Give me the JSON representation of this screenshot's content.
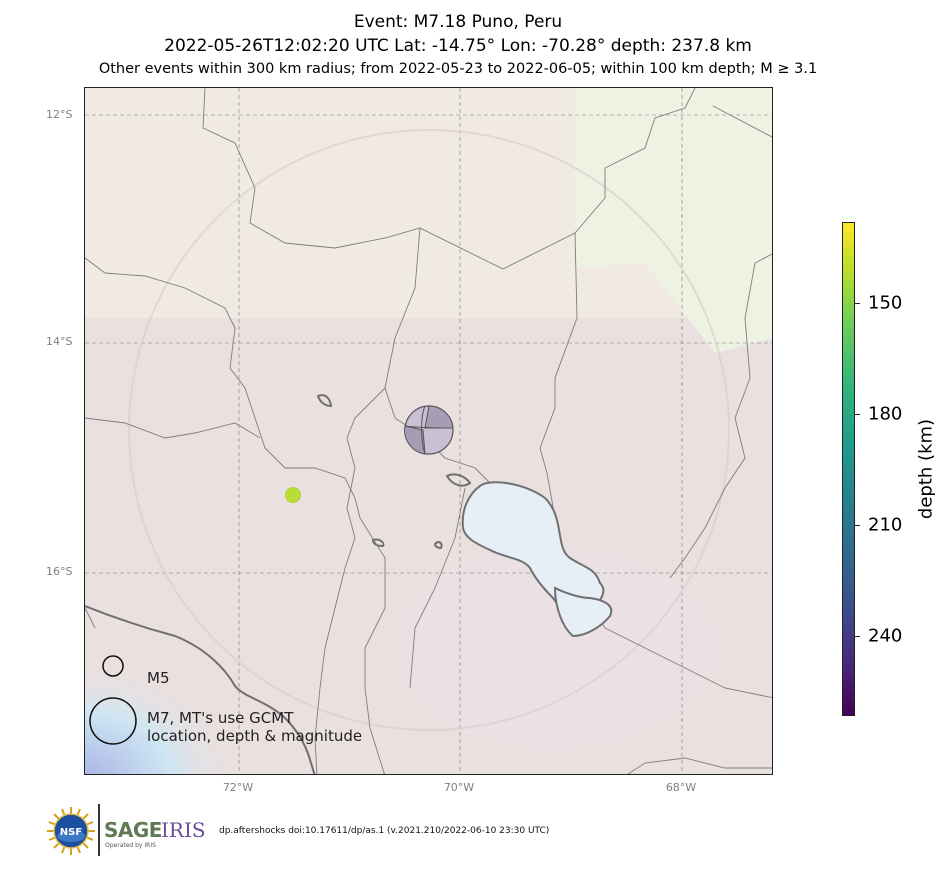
{
  "title": {
    "line1": "Event: M7.18 Puno, Peru",
    "line2": "2022-05-26T12:02:20 UTC Lat: -14.75° Lon: -70.28° depth: 237.8 km",
    "line3": "Other events within 300 km radius; from 2022-05-23 to 2022-06-05; within 100 km depth; M ≥ 3.1"
  },
  "map": {
    "lat_labels": [
      "12°S",
      "14°S",
      "16°S"
    ],
    "lon_labels": [
      "72°W",
      "70°W",
      "68°W"
    ],
    "main_event": {
      "lat": -14.75,
      "lon": -70.28,
      "magnitude": 7.18,
      "depth_km": 237.8,
      "symbol": "focal-mechanism-beachball"
    },
    "other_events": [
      {
        "lat": -15.3,
        "lon": -71.5,
        "color": "#b5de2b"
      }
    ],
    "legend": {
      "small_label": "M5",
      "large_label_line1": "M7, MT's use GCMT",
      "large_label_line2": "location, depth & magnitude"
    }
  },
  "colorbar": {
    "title": "depth (km)",
    "ticks": [
      "150",
      "180",
      "210",
      "240"
    ],
    "colormap": "viridis"
  },
  "footer": {
    "sage": "SAGE",
    "iris": "IRIS",
    "nsf": "NSF",
    "operated_by": "Operated by IRIS",
    "doi": "dp.aftershocks doi:10.17611/dp/as.1 (v.2021.210/2022-06-10 23:30 UTC)"
  }
}
